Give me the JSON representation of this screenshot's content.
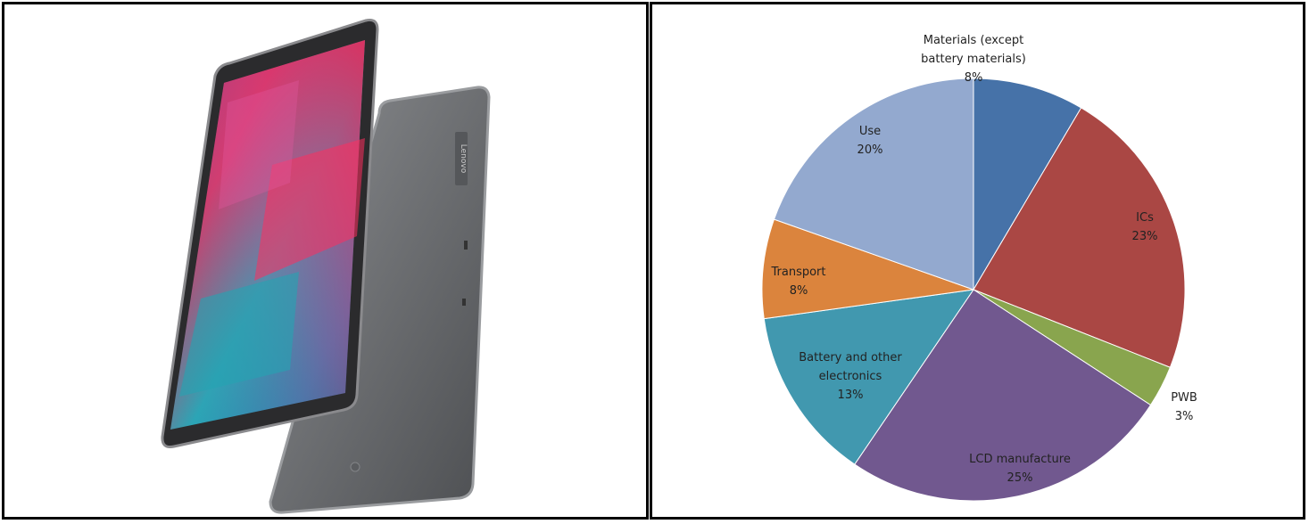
{
  "colors": {
    "materials": "#4672A8",
    "ics": "#AA4744",
    "pwb": "#89A54E",
    "lcd": "#71588F",
    "battery": "#4198AF",
    "transport": "#DB843D",
    "use": "#93A9CF"
  },
  "image": {
    "subject": "tablet-photo",
    "brand_text": "Lenovo"
  },
  "chart_data": {
    "type": "pie",
    "title": "",
    "start_angle_deg": 0,
    "direction": "clockwise",
    "slices": [
      {
        "key": "materials",
        "label": "Materials (except battery materials)",
        "label_lines": [
          "Materials (except",
          "battery materials)"
        ],
        "percent_label": "8%",
        "value": 8.5
      },
      {
        "key": "ics",
        "label": "ICs",
        "label_lines": [
          "ICs"
        ],
        "percent_label": "23%",
        "value": 22.5
      },
      {
        "key": "pwb",
        "label": "PWB",
        "label_lines": [
          "PWB"
        ],
        "percent_label": "3%",
        "value": 3.2
      },
      {
        "key": "lcd",
        "label": "LCD manufacture",
        "label_lines": [
          "LCD manufacture"
        ],
        "percent_label": "25%",
        "value": 25.3
      },
      {
        "key": "battery",
        "label": "Battery and other electronics",
        "label_lines": [
          "Battery and other",
          "electronics"
        ],
        "percent_label": "13%",
        "value": 13.3
      },
      {
        "key": "transport",
        "label": "Transport",
        "label_lines": [
          "Transport"
        ],
        "percent_label": "8%",
        "value": 7.6
      },
      {
        "key": "use",
        "label": "Use",
        "label_lines": [
          "Use"
        ],
        "percent_label": "20%",
        "value": 19.6
      }
    ]
  }
}
